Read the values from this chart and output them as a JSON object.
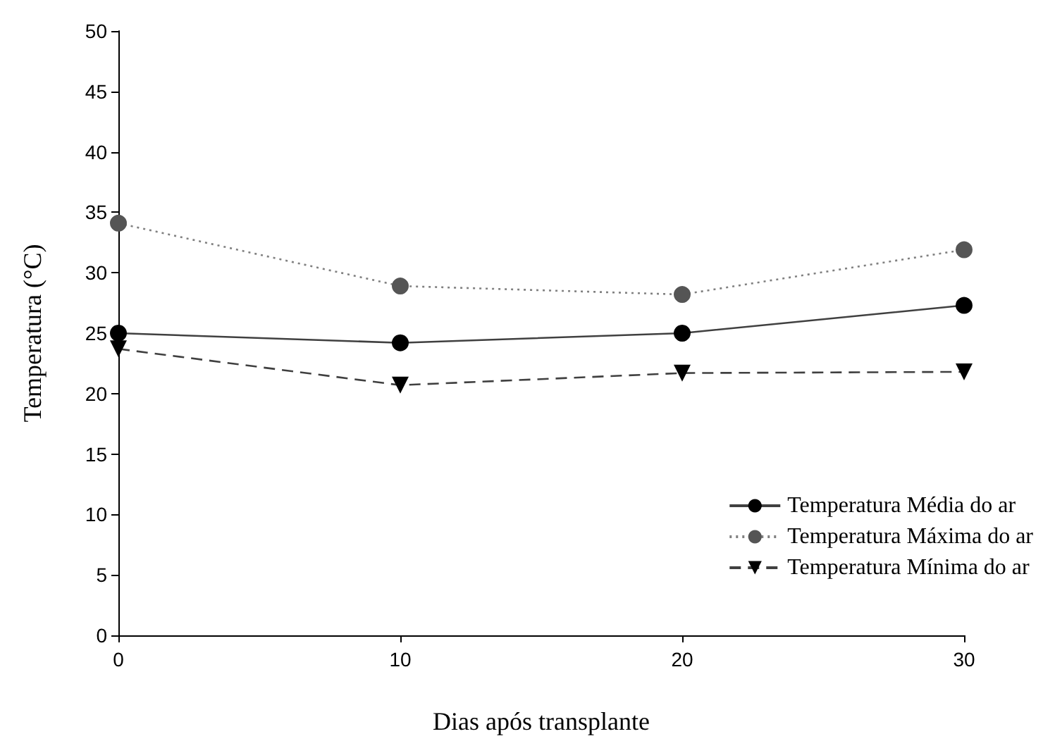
{
  "chart_data": {
    "type": "line",
    "xlabel": "Dias após transplante",
    "ylabel": "Temperatura (°C)",
    "x": [
      0,
      10,
      20,
      30
    ],
    "series": [
      {
        "name": "Temperatura Média do ar",
        "color": "#000000",
        "marker": "circle",
        "line_style": "solid",
        "values": [
          25,
          24.2,
          25,
          27.3
        ]
      },
      {
        "name": "Temperatura Máxima do ar",
        "color": "#555555",
        "marker": "circle",
        "line_style": "dotted",
        "values": [
          34.1,
          28.9,
          28.2,
          31.9
        ]
      },
      {
        "name": "Temperatura Mínima do ar",
        "color": "#000000",
        "marker": "triangle",
        "line_style": "dashed",
        "values": [
          23.7,
          20.7,
          21.7,
          21.8
        ]
      }
    ],
    "xlim": [
      0,
      30
    ],
    "xticks": [
      0,
      10,
      20,
      30
    ],
    "ylim": [
      0,
      50
    ],
    "yticks": [
      0,
      5,
      10,
      15,
      20,
      25,
      30,
      35,
      40,
      45,
      50
    ],
    "grid": false,
    "legend": "bottom right"
  }
}
